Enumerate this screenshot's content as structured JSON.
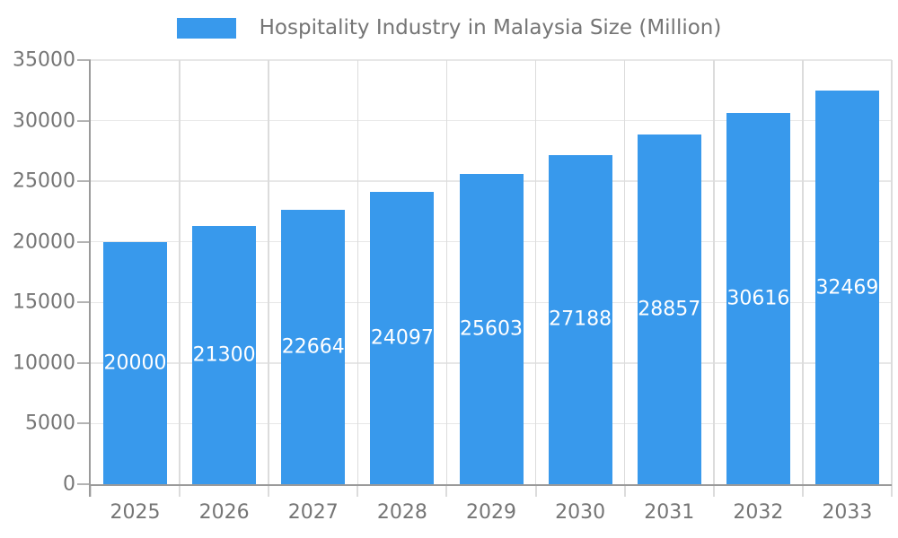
{
  "chart_data": {
    "type": "bar",
    "title": "Hospitality Industry in Malaysia Size (Million)",
    "categories": [
      "2025",
      "2026",
      "2027",
      "2028",
      "2029",
      "2030",
      "2031",
      "2032",
      "2033"
    ],
    "values": [
      20000,
      21300,
      22664,
      24097,
      25603,
      27188,
      28857,
      30616,
      32469
    ],
    "xlabel": "",
    "ylabel": "",
    "ylim": [
      0,
      35000
    ],
    "ytick_step": 5000,
    "yticks": [
      "0",
      "5000",
      "10000",
      "15000",
      "20000",
      "25000",
      "30000",
      "35000"
    ],
    "grid": true,
    "legend_position": "top-center",
    "value_labels": "inside-center-white"
  },
  "legend": {
    "label": "Hospitality Industry in Malaysia Size (Million)"
  },
  "colors": {
    "bar": "#3899EC",
    "bar_label": "#FFFFFF",
    "axis": "#9A9A9A",
    "grid_horizontal": "#E7E7E7",
    "grid_vertical": "#DCDCDC",
    "text": "#757575",
    "background": "#FFFFFF"
  }
}
